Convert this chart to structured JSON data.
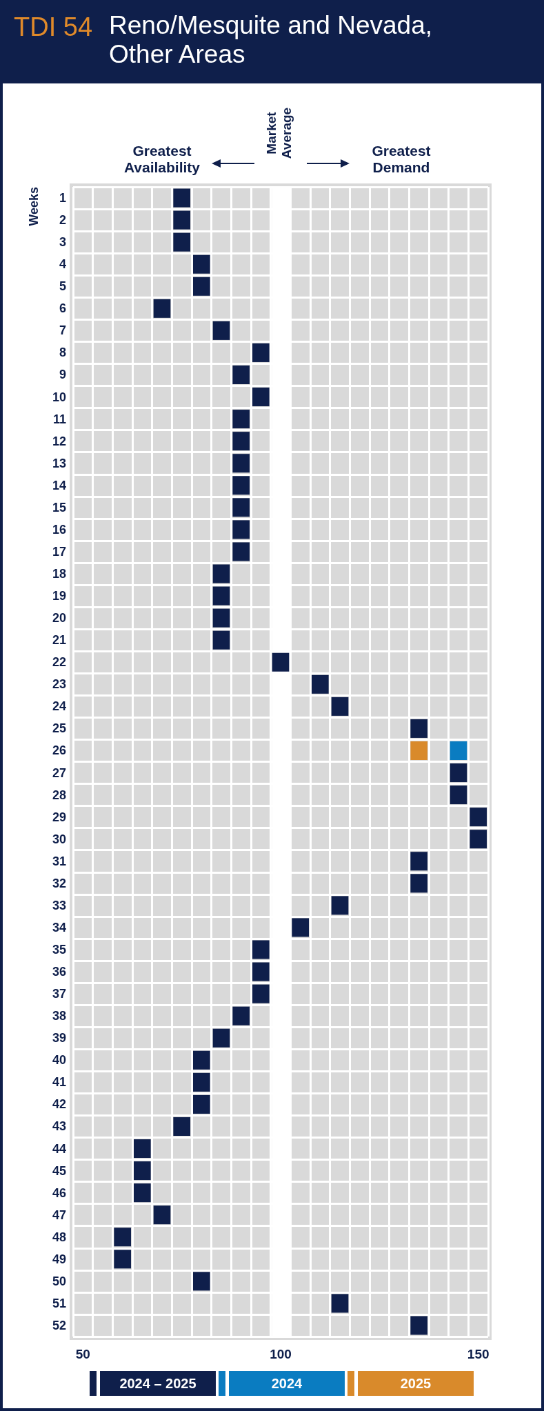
{
  "chart_data": {
    "type": "scatter",
    "title": "TDI 54",
    "subtitle": "Reno/Mesquite and Nevada, Other Areas",
    "ylabel": "Weeks",
    "orientation": "horizontal",
    "categories": [
      "1",
      "2",
      "3",
      "4",
      "5",
      "6",
      "7",
      "8",
      "9",
      "10",
      "11",
      "12",
      "13",
      "14",
      "15",
      "16",
      "17",
      "18",
      "19",
      "20",
      "21",
      "22",
      "23",
      "24",
      "25",
      "26",
      "27",
      "28",
      "29",
      "30",
      "31",
      "32",
      "33",
      "34",
      "35",
      "36",
      "37",
      "38",
      "39",
      "40",
      "41",
      "42",
      "43",
      "44",
      "45",
      "46",
      "47",
      "48",
      "49",
      "50",
      "51",
      "52"
    ],
    "xlim": [
      47.5,
      152.5
    ],
    "xticks": [
      50,
      100,
      150
    ],
    "grid": true,
    "marker": "square",
    "legend": "bottom",
    "ref_lines": [
      {
        "axis": "x",
        "value": 100,
        "label": "Market Average",
        "color": "#ffffff"
      }
    ],
    "annotations": [
      "Greatest Availability",
      "Greatest Demand"
    ],
    "series": [
      {
        "name": "2024 – 2025",
        "color": "#0f1f4b",
        "values": [
          75,
          75,
          75,
          80,
          80,
          70,
          85,
          95,
          90,
          95,
          90,
          90,
          90,
          90,
          90,
          90,
          90,
          85,
          85,
          85,
          85,
          100,
          110,
          115,
          135,
          null,
          145,
          145,
          150,
          150,
          135,
          135,
          115,
          105,
          95,
          95,
          95,
          90,
          85,
          80,
          80,
          80,
          75,
          65,
          65,
          65,
          70,
          60,
          60,
          80,
          115,
          135
        ]
      },
      {
        "name": "2024",
        "color": "#0a7cc1",
        "values": [
          null,
          null,
          null,
          null,
          null,
          null,
          null,
          null,
          null,
          null,
          null,
          null,
          null,
          null,
          null,
          null,
          null,
          null,
          null,
          null,
          null,
          null,
          null,
          null,
          null,
          145,
          null,
          null,
          null,
          null,
          null,
          null,
          null,
          null,
          null,
          null,
          null,
          null,
          null,
          null,
          null,
          null,
          null,
          null,
          null,
          null,
          null,
          null,
          null,
          null,
          null,
          null
        ]
      },
      {
        "name": "2025",
        "color": "#d98a2b",
        "values": [
          null,
          null,
          null,
          null,
          null,
          null,
          null,
          null,
          null,
          null,
          null,
          null,
          null,
          null,
          null,
          null,
          null,
          null,
          null,
          null,
          null,
          null,
          null,
          null,
          null,
          135,
          null,
          null,
          null,
          null,
          null,
          null,
          null,
          null,
          null,
          null,
          null,
          null,
          null,
          null,
          null,
          null,
          null,
          null,
          null,
          null,
          null,
          null,
          null,
          null,
          null,
          null
        ]
      }
    ]
  }
}
